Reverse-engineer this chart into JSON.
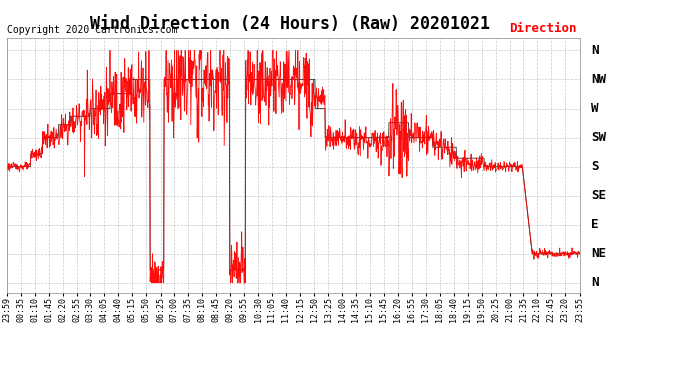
{
  "title": "Wind Direction (24 Hours) (Raw) 20201021",
  "copyright": "Copyright 2020 Cartronics.com",
  "legend_label": "Direction",
  "background_color": "#ffffff",
  "plot_bg_color": "#ffffff",
  "ytick_labels_top_to_bottom": [
    "N",
    "NW",
    "W",
    "SW",
    "S",
    "SE",
    "E",
    "NE",
    "N"
  ],
  "ytick_values": [
    360,
    315,
    270,
    225,
    180,
    135,
    90,
    45,
    0
  ],
  "ylim": [
    -15,
    380
  ],
  "grid_color": "#bbbbbb",
  "red_color": "#ff0000",
  "dark_color": "#333333",
  "title_fontsize": 12,
  "copyright_fontsize": 7,
  "xtick_fontsize": 6,
  "ytick_fontsize": 9,
  "xtick_labels": [
    "23:59",
    "00:35",
    "01:10",
    "01:45",
    "02:20",
    "02:55",
    "03:30",
    "04:05",
    "04:40",
    "05:15",
    "05:50",
    "06:25",
    "07:00",
    "07:35",
    "08:10",
    "08:45",
    "09:20",
    "09:55",
    "10:30",
    "11:05",
    "11:40",
    "12:15",
    "12:50",
    "13:25",
    "14:00",
    "14:35",
    "15:10",
    "15:45",
    "16:20",
    "16:55",
    "17:30",
    "18:05",
    "18:40",
    "19:15",
    "19:50",
    "20:25",
    "21:00",
    "21:35",
    "22:10",
    "22:45",
    "23:20",
    "23:55"
  ]
}
